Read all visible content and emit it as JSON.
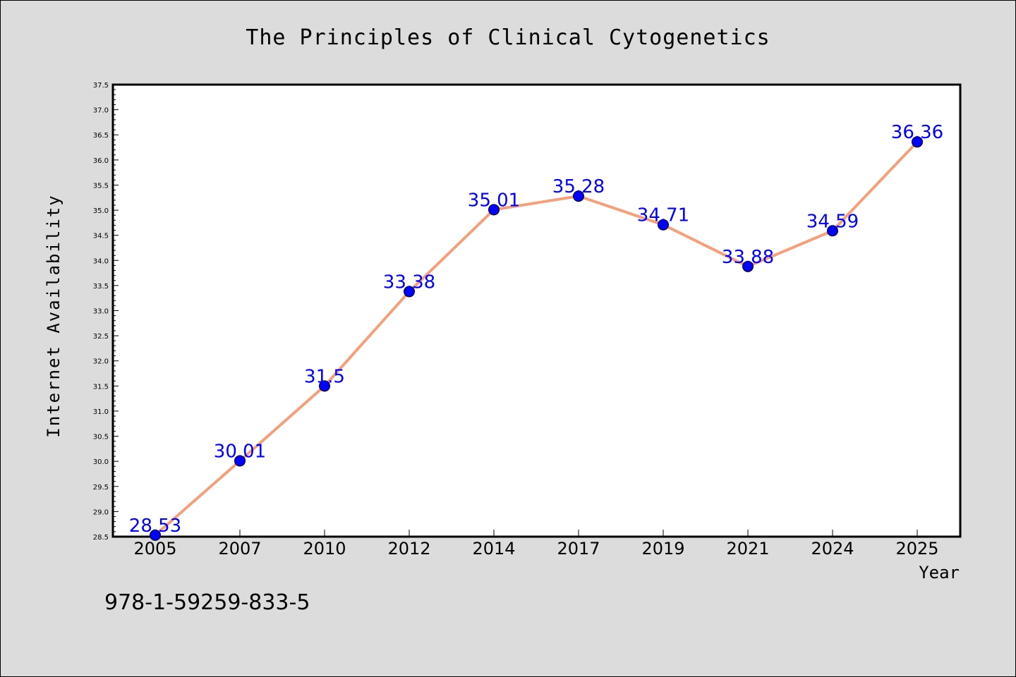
{
  "chart_data": {
    "type": "line",
    "title": "The Principles of Clinical Cytogenetics",
    "xlabel": "Year",
    "ylabel": "Internet Availability",
    "categories": [
      "2005",
      "2007",
      "2010",
      "2012",
      "2014",
      "2017",
      "2019",
      "2021",
      "2024",
      "2025"
    ],
    "series": [
      {
        "values": [
          28.53,
          30.01,
          31.5,
          33.38,
          35.01,
          35.28,
          34.71,
          33.88,
          34.59,
          36.36
        ],
        "labels": [
          "28.53",
          "30.01",
          "31.5",
          "33.38",
          "35.01",
          "35.28",
          "34.71",
          "33.88",
          "34.59",
          "36.36"
        ],
        "line_color": "#f4a07a",
        "marker_color": "#0000ff"
      }
    ],
    "ylim": [
      28.5,
      37.5
    ],
    "yticks": [
      "28.5",
      "29.0",
      "29.5",
      "30.0",
      "30.5",
      "31.0",
      "31.5",
      "32.0",
      "32.5",
      "33.0",
      "33.5",
      "34.0",
      "34.5",
      "35.0",
      "35.5",
      "36.0",
      "36.5",
      "37.0",
      "37.5"
    ],
    "grid": false,
    "label_color": "#0000ff"
  },
  "annotation": {
    "isbn": "978-1-59259-833-5"
  }
}
